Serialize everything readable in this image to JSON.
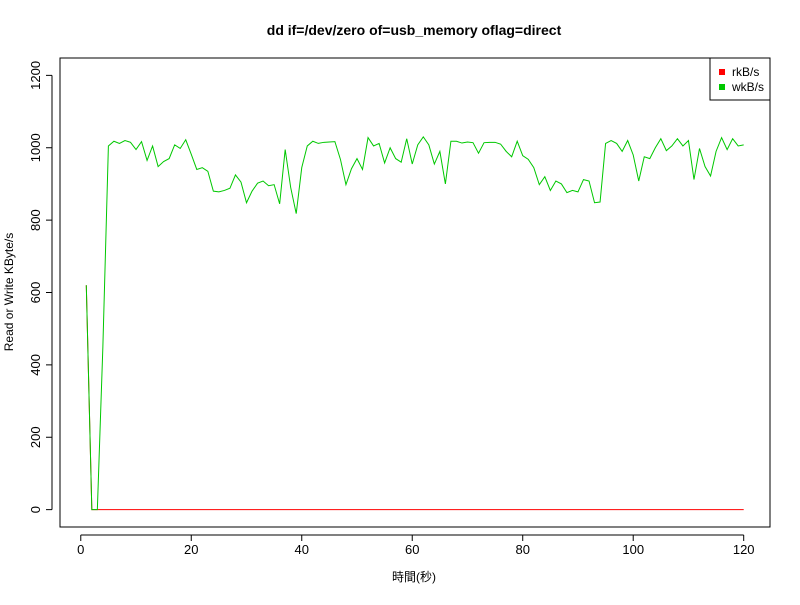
{
  "chart_data": {
    "type": "line",
    "title": "dd if=/dev/zero of=usb_memory oflag=direct",
    "x_label": "時間(秒)",
    "y_label": "Read or Write KByte/s",
    "x": [
      1,
      2,
      3,
      4,
      5,
      6,
      7,
      8,
      9,
      10,
      11,
      12,
      13,
      14,
      15,
      16,
      17,
      18,
      19,
      20,
      21,
      22,
      23,
      24,
      25,
      26,
      27,
      28,
      29,
      30,
      31,
      32,
      33,
      34,
      35,
      36,
      37,
      38,
      39,
      40,
      41,
      42,
      43,
      44,
      45,
      46,
      47,
      48,
      49,
      50,
      51,
      52,
      53,
      54,
      55,
      56,
      57,
      58,
      59,
      60,
      61,
      62,
      63,
      64,
      65,
      66,
      67,
      68,
      69,
      70,
      71,
      72,
      73,
      74,
      75,
      76,
      77,
      78,
      79,
      80,
      81,
      82,
      83,
      84,
      85,
      86,
      87,
      88,
      89,
      90,
      91,
      92,
      93,
      94,
      95,
      96,
      97,
      98,
      99,
      100,
      101,
      102,
      103,
      104,
      105,
      106,
      107,
      108,
      109,
      110,
      111,
      112,
      113,
      114,
      115,
      116,
      117,
      118,
      119,
      120
    ],
    "series": [
      {
        "name": "rkB/s",
        "color": "#ff0000",
        "values": [
          620,
          0,
          0,
          0,
          0,
          0,
          0,
          0,
          0,
          0,
          0,
          0,
          0,
          0,
          0,
          0,
          0,
          0,
          0,
          0,
          0,
          0,
          0,
          0,
          0,
          0,
          0,
          0,
          0,
          0,
          0,
          0,
          0,
          0,
          0,
          0,
          0,
          0,
          0,
          0,
          0,
          0,
          0,
          0,
          0,
          0,
          0,
          0,
          0,
          0,
          0,
          0,
          0,
          0,
          0,
          0,
          0,
          0,
          0,
          0,
          0,
          0,
          0,
          0,
          0,
          0,
          0,
          0,
          0,
          0,
          0,
          0,
          0,
          0,
          0,
          0,
          0,
          0,
          0,
          0,
          0,
          0,
          0,
          0,
          0,
          0,
          0,
          0,
          0,
          0,
          0,
          0,
          0,
          0,
          0,
          0,
          0,
          0,
          0,
          0,
          0,
          0,
          0,
          0,
          0,
          0,
          0,
          0,
          0,
          0,
          0,
          0,
          0,
          0,
          0,
          0,
          0,
          0,
          0,
          0
        ]
      },
      {
        "name": "wkB/s",
        "color": "#00c800",
        "values": [
          620,
          0,
          0,
          450,
          1005,
          1018,
          1012,
          1020,
          1015,
          995,
          1017,
          965,
          1005,
          948,
          962,
          970,
          1008,
          998,
          1022,
          982,
          940,
          945,
          935,
          880,
          878,
          882,
          888,
          925,
          905,
          848,
          880,
          902,
          908,
          895,
          898,
          845,
          995,
          890,
          818,
          945,
          1005,
          1018,
          1012,
          1015,
          1016,
          1017,
          968,
          898,
          942,
          970,
          940,
          1028,
          1005,
          1012,
          958,
          1000,
          970,
          960,
          1025,
          955,
          1008,
          1030,
          1008,
          955,
          990,
          900,
          1018,
          1018,
          1013,
          1016,
          1014,
          985,
          1014,
          1015,
          1015,
          1010,
          990,
          975,
          1018,
          978,
          968,
          945,
          898,
          920,
          882,
          908,
          900,
          876,
          882,
          878,
          912,
          908,
          848,
          850,
          1012,
          1020,
          1012,
          990,
          1020,
          980,
          908,
          975,
          970,
          1000,
          1025,
          992,
          1005,
          1025,
          1005,
          1020,
          912,
          998,
          948,
          922,
          990,
          1028,
          995,
          1025,
          1005,
          1008
        ]
      }
    ],
    "xlim": [
      -3.76,
      124.76
    ],
    "ylim": [
      -48,
      1248
    ],
    "xticks": [
      0,
      20,
      40,
      60,
      80,
      100,
      120
    ],
    "yticks": [
      0,
      200,
      400,
      600,
      800,
      1000,
      1200
    ],
    "legend": "topright"
  }
}
